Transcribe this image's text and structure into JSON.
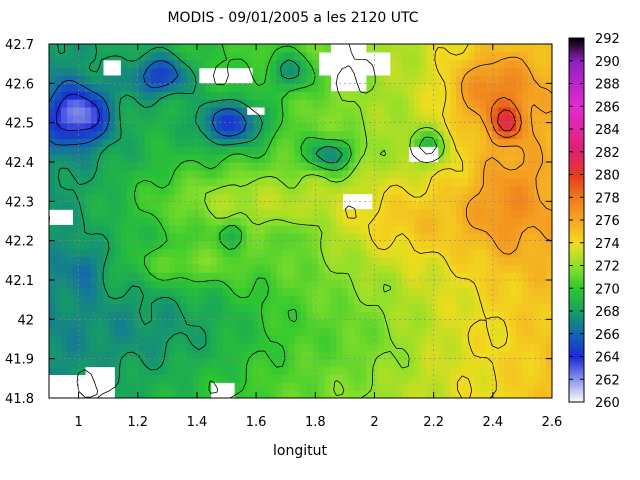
{
  "chart_data": {
    "type": "heatmap",
    "title": "MODIS - 09/01/2005 a les 2120 UTC",
    "xlabel": "longitut",
    "ylabel": "",
    "xlim": [
      0.9,
      2.6
    ],
    "ylim": [
      41.8,
      42.7
    ],
    "x_ticks": [
      "1",
      "1.2",
      "1.4",
      "1.6",
      "1.8",
      "2",
      "2.2",
      "2.4",
      "2.6"
    ],
    "x_tick_values": [
      1.0,
      1.2,
      1.4,
      1.6,
      1.8,
      2.0,
      2.2,
      2.4,
      2.6
    ],
    "y_ticks": [
      "41.8",
      "41.9",
      "42",
      "42.1",
      "42.2",
      "42.3",
      "42.4",
      "42.5",
      "42.6",
      "42.7"
    ],
    "y_tick_values": [
      41.8,
      41.9,
      42.0,
      42.1,
      42.2,
      42.3,
      42.4,
      42.5,
      42.6,
      42.7
    ],
    "grid": true,
    "colorbar": {
      "min": 260,
      "max": 292,
      "ticks": [
        "260",
        "262",
        "264",
        "266",
        "268",
        "270",
        "272",
        "274",
        "276",
        "278",
        "280",
        "282",
        "284",
        "286",
        "288",
        "290",
        "292"
      ],
      "tick_values": [
        260,
        262,
        264,
        266,
        268,
        270,
        272,
        274,
        276,
        278,
        280,
        282,
        284,
        286,
        288,
        290,
        292
      ],
      "stops": [
        {
          "v": 260,
          "color": "#ffffff"
        },
        {
          "v": 264,
          "color": "#1a2bd8"
        },
        {
          "v": 266,
          "color": "#1565b0"
        },
        {
          "v": 268,
          "color": "#16a060"
        },
        {
          "v": 270,
          "color": "#2ec82e"
        },
        {
          "v": 272,
          "color": "#8ce02a"
        },
        {
          "v": 274,
          "color": "#f2dc1e"
        },
        {
          "v": 276,
          "color": "#f5a623"
        },
        {
          "v": 278,
          "color": "#ef7a1a"
        },
        {
          "v": 280,
          "color": "#e53b1f"
        },
        {
          "v": 282,
          "color": "#e0206e"
        },
        {
          "v": 286,
          "color": "#e22bd0"
        },
        {
          "v": 290,
          "color": "#9020c0"
        },
        {
          "v": 292,
          "color": "#000000"
        }
      ]
    },
    "field": {
      "base": 270.5,
      "east_gradient_per_degree": 4.5,
      "features": [
        {
          "x": 1.0,
          "y": 42.52,
          "sx": 0.1,
          "sy": 0.07,
          "amp": -6.0
        },
        {
          "x": 1.52,
          "y": 42.5,
          "sx": 0.12,
          "sy": 0.06,
          "amp": -5.5
        },
        {
          "x": 1.28,
          "y": 42.62,
          "sx": 0.1,
          "sy": 0.05,
          "amp": -4.5
        },
        {
          "x": 1.85,
          "y": 42.42,
          "sx": 0.08,
          "sy": 0.04,
          "amp": -5.0
        },
        {
          "x": 2.18,
          "y": 42.44,
          "sx": 0.06,
          "sy": 0.04,
          "amp": -4.0
        },
        {
          "x": 1.72,
          "y": 42.63,
          "sx": 0.08,
          "sy": 0.05,
          "amp": -3.5
        },
        {
          "x": 1.02,
          "y": 42.13,
          "sx": 0.05,
          "sy": 0.05,
          "amp": -2.0
        },
        {
          "x": 1.5,
          "y": 42.3,
          "sx": 0.35,
          "sy": 0.08,
          "amp": 2.5
        },
        {
          "x": 2.1,
          "y": 42.25,
          "sx": 0.25,
          "sy": 0.1,
          "amp": 2.0
        },
        {
          "x": 1.35,
          "y": 42.14,
          "sx": 0.2,
          "sy": 0.05,
          "amp": 2.2
        },
        {
          "x": 2.45,
          "y": 42.5,
          "sx": 0.05,
          "sy": 0.04,
          "amp": 5.0
        },
        {
          "x": 2.4,
          "y": 42.58,
          "sx": 0.15,
          "sy": 0.1,
          "amp": 3.5
        },
        {
          "x": 2.45,
          "y": 42.3,
          "sx": 0.15,
          "sy": 0.15,
          "amp": 2.5
        },
        {
          "x": 1.52,
          "y": 42.22,
          "sx": 0.04,
          "sy": 0.03,
          "amp": -2.5
        },
        {
          "x": 1.75,
          "y": 42.22,
          "sx": 0.05,
          "sy": 0.03,
          "amp": -1.5
        },
        {
          "x": 1.35,
          "y": 41.98,
          "sx": 0.35,
          "sy": 0.12,
          "amp": -1.5
        },
        {
          "x": 1.95,
          "y": 41.95,
          "sx": 0.2,
          "sy": 0.1,
          "amp": -0.8
        }
      ]
    },
    "missing_regions": [
      {
        "x0": 0.91,
        "x1": 1.13,
        "y0": 41.8,
        "y1": 41.86
      },
      {
        "x0": 1.02,
        "x1": 1.12,
        "y0": 41.86,
        "y1": 41.88
      },
      {
        "x0": 1.44,
        "x1": 1.52,
        "y0": 41.8,
        "y1": 41.84
      },
      {
        "x0": 1.85,
        "x1": 1.97,
        "y0": 42.58,
        "y1": 42.7
      },
      {
        "x0": 1.82,
        "x1": 2.06,
        "y0": 42.62,
        "y1": 42.67
      },
      {
        "x0": 1.4,
        "x1": 1.58,
        "y0": 42.6,
        "y1": 42.64
      },
      {
        "x0": 1.08,
        "x1": 1.14,
        "y0": 42.62,
        "y1": 42.66
      },
      {
        "x0": 1.56,
        "x1": 1.62,
        "y0": 42.52,
        "y1": 42.55
      },
      {
        "x0": 2.12,
        "x1": 2.22,
        "y0": 42.4,
        "y1": 42.44
      },
      {
        "x0": 1.9,
        "x1": 2.0,
        "y0": 42.28,
        "y1": 42.31
      },
      {
        "x0": 0.91,
        "x1": 0.98,
        "y0": 42.25,
        "y1": 42.28
      }
    ],
    "contour_levels": [
      262,
      264,
      266,
      268,
      270,
      272,
      274,
      276,
      278,
      280,
      282
    ]
  }
}
